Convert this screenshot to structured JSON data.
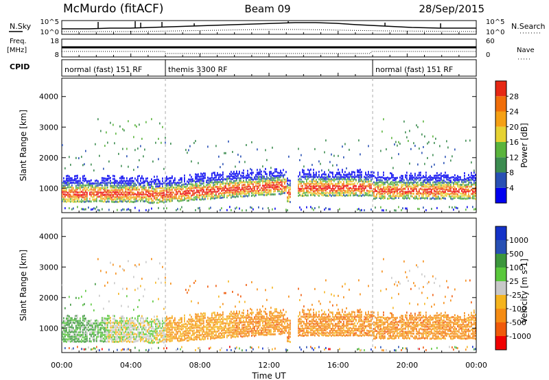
{
  "header": {
    "station": "McMurdo (fitACF)",
    "beam": "Beam 09",
    "date": "28/Sep/2015"
  },
  "left_labels": {
    "nsky": "N.Sky",
    "freq_line1": "Freq.",
    "freq_line2": "[MHz]",
    "cpid": "CPID"
  },
  "right_labels": {
    "nsearch": "N.Search",
    "nave": "Nave"
  },
  "noise_panel": {
    "left_ticks": [
      "10^5",
      "10^0"
    ],
    "right_ticks": [
      "10^5",
      "10^0"
    ]
  },
  "freq_panel": {
    "left_ticks": [
      "18",
      "8"
    ],
    "right_ticks": [
      "60",
      "0"
    ]
  },
  "cpid_panel": {
    "segments": [
      {
        "label": "normal (fast) 151 RF",
        "start_hour": 0,
        "end_hour": 6
      },
      {
        "label": "themis 3300 RF",
        "start_hour": 6,
        "end_hour": 18
      },
      {
        "label": "normal (fast) 151 RF",
        "start_hour": 18,
        "end_hour": 24
      }
    ]
  },
  "x_axis": {
    "label": "Time UT",
    "ticks": [
      "00:00",
      "04:00",
      "08:00",
      "12:00",
      "16:00",
      "20:00",
      "00:00"
    ]
  },
  "colors": {
    "power": [
      "#0000f0",
      "#2850b4",
      "#3c8c50",
      "#5ab43c",
      "#e6d232",
      "#f5a014",
      "#f06e0a",
      "#e62814",
      "#f00000"
    ],
    "velocity": [
      "#f00000",
      "#f05a0a",
      "#f58c14",
      "#f5b41e",
      "#c8c8c8",
      "#5ac83c",
      "#3c963c",
      "#2850b4",
      "#1432c8"
    ]
  },
  "chart_data": [
    {
      "type": "heatmap",
      "ylabel": "Slant Range [km]",
      "xlabel": "",
      "xlim": [
        0,
        24
      ],
      "ylim": [
        200,
        4600
      ],
      "yticks": [
        1000,
        2000,
        3000,
        4000
      ],
      "colorbar": {
        "label": "Power [dB]",
        "ticks": [
          4,
          8,
          12,
          16,
          20,
          24,
          28
        ],
        "range": [
          0,
          32
        ]
      }
    },
    {
      "type": "heatmap",
      "ylabel": "Slant Range [km]",
      "xlabel": "Time UT",
      "xlim": [
        0,
        24
      ],
      "ylim": [
        200,
        4600
      ],
      "yticks": [
        1000,
        2000,
        3000,
        4000
      ],
      "colorbar": {
        "label": "Velocity [m s-1]",
        "ticks": [
          "1000",
          "500",
          "100",
          "25",
          "-25",
          "-100",
          "-500",
          "-1000"
        ]
      }
    }
  ]
}
